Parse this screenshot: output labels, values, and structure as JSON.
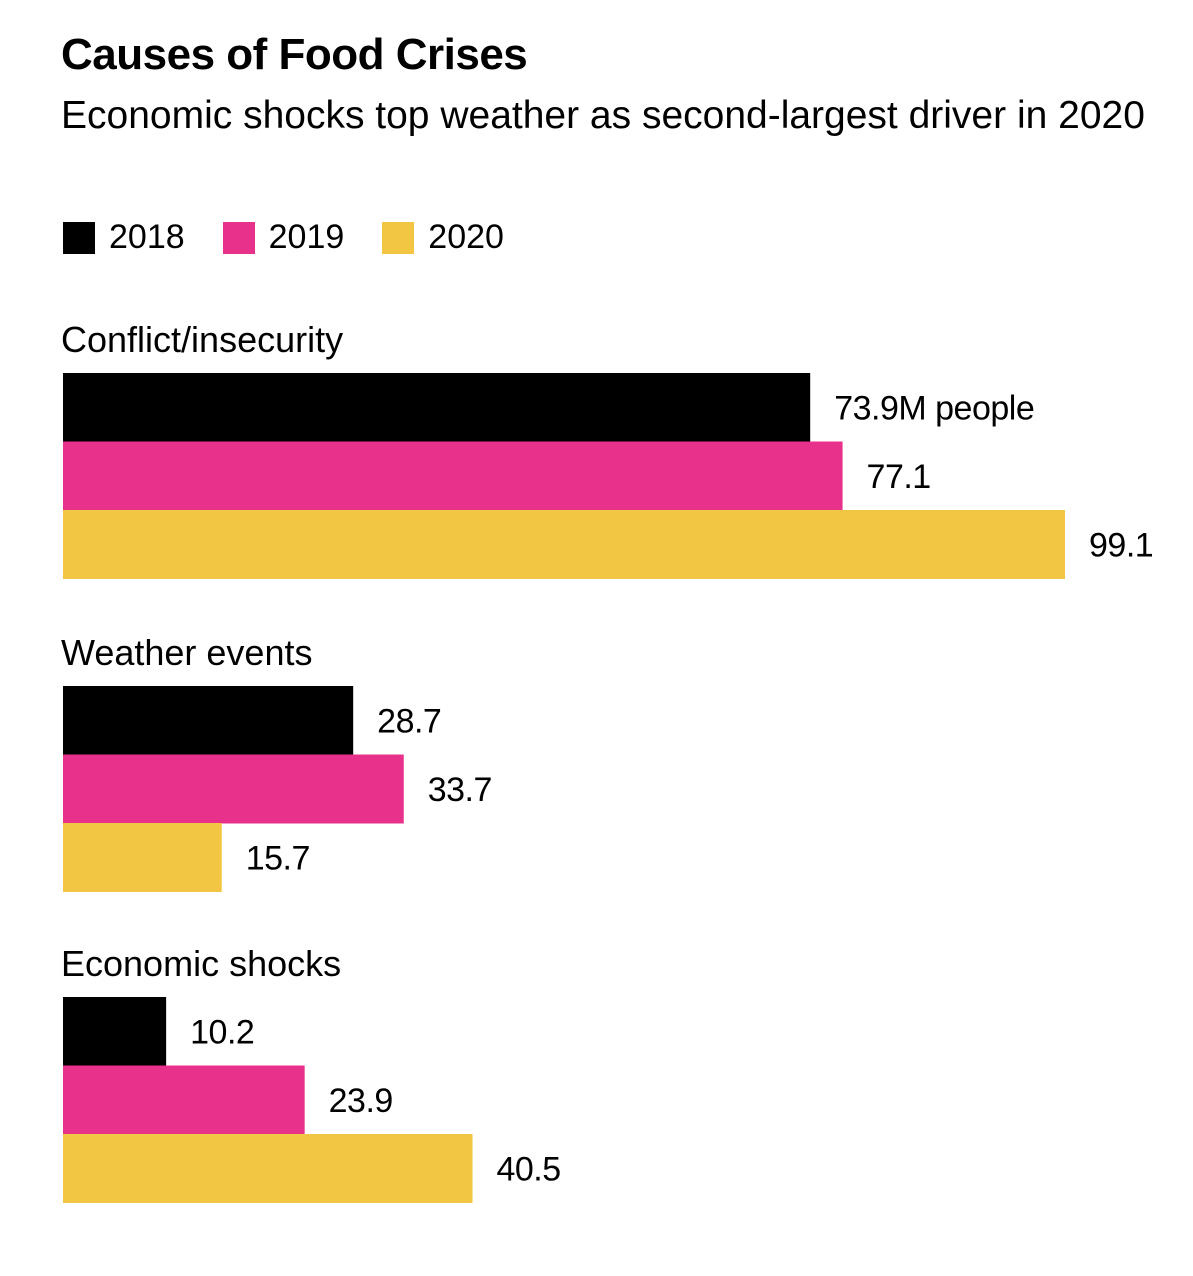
{
  "header": {
    "title": "Causes of Food Crises",
    "subtitle": "Economic shocks top weather as second-largest driver in 2020"
  },
  "legend": [
    {
      "label": "2018",
      "color": "#000000"
    },
    {
      "label": "2019",
      "color": "#e8318a"
    },
    {
      "label": "2020",
      "color": "#f2c642"
    }
  ],
  "chart_data": {
    "type": "bar",
    "orientation": "horizontal",
    "title": "Causes of Food Crises",
    "subtitle": "Economic shocks top weather as second-largest driver in 2020",
    "categories": [
      "Conflict/insecurity",
      "Weather events",
      "Economic shocks"
    ],
    "series": [
      {
        "name": "2018",
        "color": "#000000",
        "values": [
          73.9,
          28.7,
          10.2
        ],
        "labels": [
          "73.9M people",
          "28.7",
          "10.2"
        ]
      },
      {
        "name": "2019",
        "color": "#e8318a",
        "values": [
          77.1,
          33.7,
          23.9
        ],
        "labels": [
          "77.1",
          "33.7",
          "23.9"
        ]
      },
      {
        "name": "2020",
        "color": "#f2c642",
        "values": [
          99.1,
          15.7,
          40.5
        ],
        "labels": [
          "99.1",
          "15.7",
          "40.5"
        ]
      }
    ],
    "xlim": [
      0,
      99.1
    ],
    "grid": false,
    "legend_position": "top-left"
  }
}
